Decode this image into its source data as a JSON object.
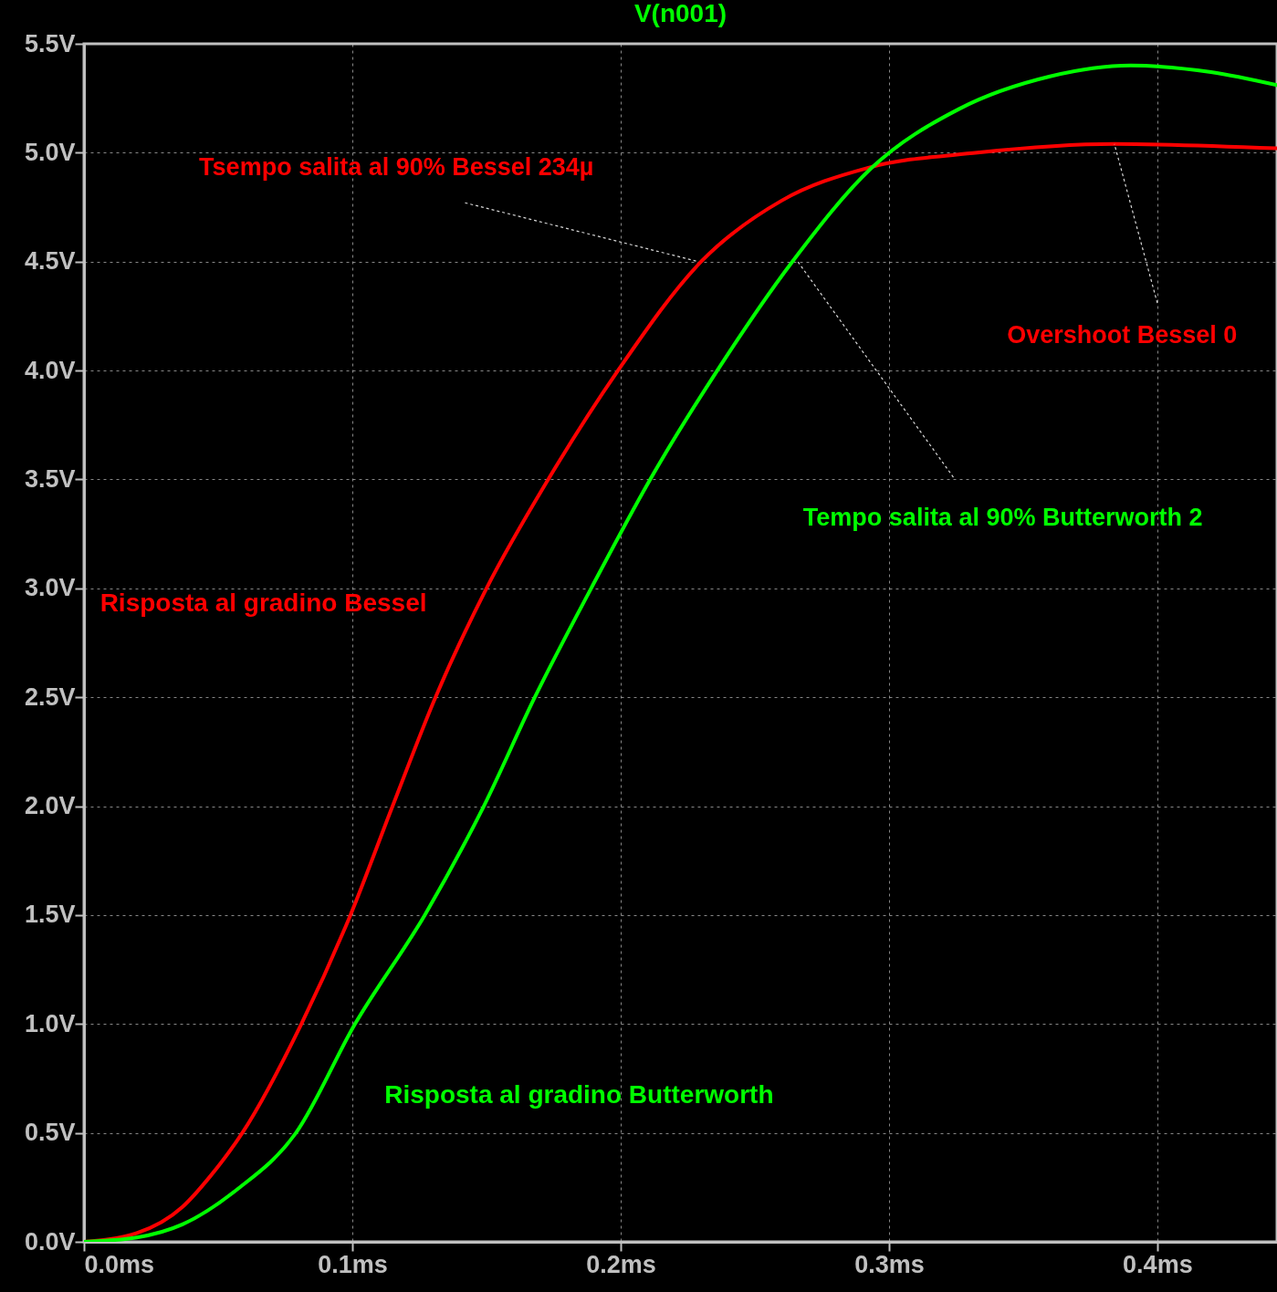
{
  "chart_data": {
    "type": "line",
    "title": "V(n001)",
    "xlim": [
      0,
      0.4446
    ],
    "ylim": [
      0,
      5.5
    ],
    "xticks": [
      {
        "value": 0,
        "label": "0.0ms"
      },
      {
        "value": 0.1,
        "label": "0.1ms"
      },
      {
        "value": 0.2,
        "label": "0.2ms"
      },
      {
        "value": 0.3,
        "label": "0.3ms"
      },
      {
        "value": 0.4,
        "label": "0.4ms"
      }
    ],
    "yticks": [
      {
        "value": 0,
        "label": "0.0V"
      },
      {
        "value": 0.5,
        "label": "0.5V"
      },
      {
        "value": 1,
        "label": "1.0V"
      },
      {
        "value": 1.5,
        "label": "1.5V"
      },
      {
        "value": 2,
        "label": "2.0V"
      },
      {
        "value": 2.5,
        "label": "2.5V"
      },
      {
        "value": 3,
        "label": "3.0V"
      },
      {
        "value": 3.5,
        "label": "3.5V"
      },
      {
        "value": 4,
        "label": "4.0V"
      },
      {
        "value": 4.5,
        "label": "4.5V"
      },
      {
        "value": 5,
        "label": "5.0V"
      },
      {
        "value": 5.5,
        "label": "5.5V"
      }
    ],
    "grid": true,
    "series": [
      {
        "name": "Risposta al gradino Bessel",
        "color": "#ff0000",
        "x": [
          0,
          0.0197,
          0.0367,
          0.047,
          0.059,
          0.081,
          0.0993,
          0.115,
          0.131,
          0.15,
          0.173,
          0.199,
          0.23,
          0.26,
          0.292,
          0.333,
          0.384,
          0.4446
        ],
        "values": [
          0,
          0.04,
          0.16,
          0.3,
          0.5,
          1.0,
          1.5,
          2.0,
          2.5,
          3.0,
          3.5,
          4.0,
          4.5,
          4.78,
          4.93,
          5.0,
          5.04,
          5.02
        ]
      },
      {
        "name": "Risposta al gradino Butterworth",
        "color": "#00ff00",
        "x": [
          0,
          0.0197,
          0.0367,
          0.057,
          0.079,
          0.101,
          0.127,
          0.149,
          0.168,
          0.189,
          0.211,
          0.236,
          0.264,
          0.2935,
          0.326,
          0.36,
          0.39,
          0.42,
          0.4446
        ],
        "values": [
          0,
          0.02,
          0.08,
          0.24,
          0.5,
          1.0,
          1.5,
          2.0,
          2.5,
          3.0,
          3.5,
          4.0,
          4.5,
          4.93,
          5.2,
          5.35,
          5.4,
          5.37,
          5.31
        ]
      }
    ],
    "annotations": [
      {
        "text": "Tsempo salita al 90% Bessel 234µ",
        "x": 0.229,
        "y": 4.5
      },
      {
        "text": "Overshoot Bessel 0",
        "x": 0.384,
        "y": 5.04
      },
      {
        "text": "Tempo salita al 90% Butterworth 2",
        "x": 0.266,
        "y": 4.5
      }
    ]
  }
}
